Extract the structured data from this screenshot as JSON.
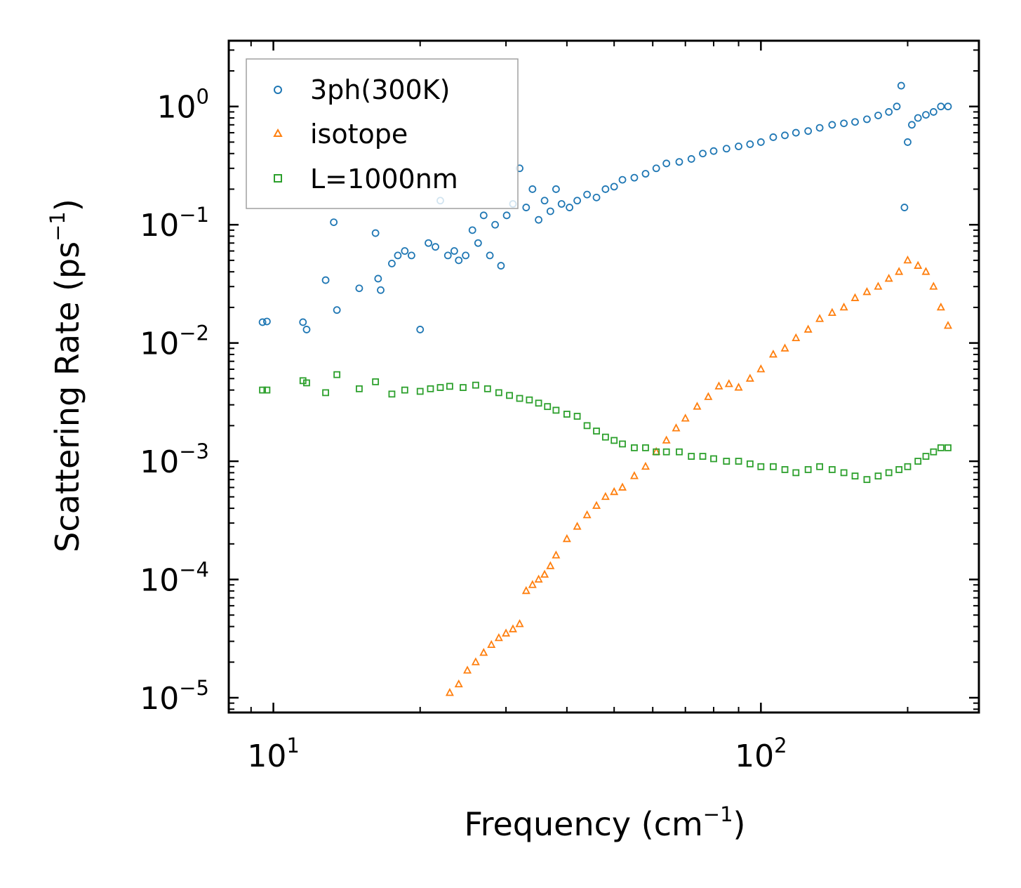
{
  "chart_data": {
    "type": "scatter",
    "title": "",
    "xlabel": "Frequency (cm",
    "xlabel_sup": "−1",
    "xlabel_end": ")",
    "ylabel": "Scattering Rate (ps",
    "ylabel_sup": "−1",
    "ylabel_end": ")",
    "xscale": "log",
    "yscale": "log",
    "xlim": [
      8.1,
      280
    ],
    "ylim": [
      7.5e-06,
      3.6
    ],
    "x_ticks": [
      {
        "value": 10,
        "base": "10",
        "exp": "1"
      },
      {
        "value": 100,
        "base": "10",
        "exp": "2"
      }
    ],
    "y_ticks": [
      {
        "value": 1,
        "base": "10",
        "exp": "0"
      },
      {
        "value": 0.1,
        "base": "10",
        "exp": "−1"
      },
      {
        "value": 0.01,
        "base": "10",
        "exp": "−2"
      },
      {
        "value": 0.001,
        "base": "10",
        "exp": "−3"
      },
      {
        "value": 0.0001,
        "base": "10",
        "exp": "−4"
      },
      {
        "value": 1e-05,
        "base": "10",
        "exp": "−5"
      }
    ],
    "legend_position": "top-left",
    "series": [
      {
        "name": "3ph(300K)",
        "marker": "circle",
        "color": "#1f77b4",
        "x": [
          9.5,
          9.7,
          11.5,
          11.7,
          12.8,
          13.3,
          13.5,
          15.0,
          16.2,
          16.4,
          16.6,
          17.5,
          18.0,
          18.6,
          19.2,
          20.0,
          20.8,
          21.5,
          22.0,
          22.8,
          23.5,
          24.0,
          24.8,
          25.6,
          26.3,
          27.0,
          27.8,
          28.5,
          29.3,
          30.1,
          31.0,
          32.0,
          33.0,
          34.0,
          35.0,
          36.0,
          37.0,
          38.0,
          39.0,
          40.5,
          42.0,
          44.0,
          46.0,
          48.0,
          50.0,
          52.0,
          55.0,
          58.0,
          61.0,
          64.0,
          68.0,
          72.0,
          76.0,
          80.0,
          85.0,
          90.0,
          95.0,
          100.0,
          106.0,
          112.0,
          118.0,
          125.0,
          132.0,
          140.0,
          148.0,
          156.0,
          165.0,
          174.0,
          183.0,
          190.0,
          194.0,
          197.0,
          200.0,
          204.0,
          210.0,
          218.0,
          226.0,
          234.0,
          242.0
        ],
        "y": [
          0.015,
          0.0152,
          0.015,
          0.013,
          0.034,
          0.105,
          0.019,
          0.029,
          0.085,
          0.035,
          0.028,
          0.047,
          0.055,
          0.06,
          0.055,
          0.013,
          0.07,
          0.065,
          0.16,
          0.055,
          0.06,
          0.05,
          0.055,
          0.09,
          0.07,
          0.12,
          0.055,
          0.1,
          0.045,
          0.12,
          0.15,
          0.3,
          0.14,
          0.2,
          0.11,
          0.16,
          0.13,
          0.2,
          0.15,
          0.14,
          0.16,
          0.18,
          0.17,
          0.2,
          0.21,
          0.24,
          0.25,
          0.27,
          0.3,
          0.33,
          0.34,
          0.36,
          0.4,
          0.42,
          0.44,
          0.46,
          0.48,
          0.5,
          0.55,
          0.57,
          0.6,
          0.62,
          0.66,
          0.7,
          0.72,
          0.74,
          0.78,
          0.84,
          0.9,
          1.0,
          1.5,
          0.14,
          0.5,
          0.7,
          0.8,
          0.85,
          0.9,
          1.0,
          1.0
        ]
      },
      {
        "name": "isotope",
        "marker": "triangle",
        "color": "#ff7f0e",
        "x": [
          23.0,
          24.0,
          25.0,
          26.0,
          27.0,
          28.0,
          29.0,
          30.0,
          31.0,
          32.0,
          33.0,
          34.0,
          35.0,
          36.0,
          37.0,
          38.0,
          40.0,
          42.0,
          44.0,
          46.0,
          48.0,
          50.0,
          52.0,
          55.0,
          58.0,
          61.0,
          64.0,
          67.0,
          70.0,
          74.0,
          78.0,
          82.0,
          86.0,
          90.0,
          95.0,
          100.0,
          106.0,
          112.0,
          118.0,
          125.0,
          132.0,
          140.0,
          148.0,
          156.0,
          165.0,
          174.0,
          183.0,
          192.0,
          200.0,
          210.0,
          218.0,
          226.0,
          234.0,
          242.0
        ],
        "y": [
          1.1e-05,
          1.3e-05,
          1.7e-05,
          2e-05,
          2.4e-05,
          2.8e-05,
          3.2e-05,
          3.5e-05,
          3.8e-05,
          4.2e-05,
          8e-05,
          9e-05,
          0.0001,
          0.00011,
          0.00013,
          0.00016,
          0.00022,
          0.00028,
          0.00035,
          0.00042,
          0.0005,
          0.00055,
          0.0006,
          0.00075,
          0.0009,
          0.0012,
          0.0015,
          0.0019,
          0.0023,
          0.0029,
          0.0035,
          0.0043,
          0.0045,
          0.0042,
          0.005,
          0.006,
          0.008,
          0.009,
          0.011,
          0.013,
          0.016,
          0.018,
          0.02,
          0.024,
          0.027,
          0.03,
          0.035,
          0.04,
          0.05,
          0.045,
          0.04,
          0.03,
          0.02,
          0.014
        ]
      },
      {
        "name": "L=1000nm",
        "marker": "square",
        "color": "#2ca02c",
        "x": [
          9.5,
          9.7,
          11.5,
          11.7,
          12.8,
          13.5,
          15.0,
          16.2,
          17.5,
          18.6,
          20.0,
          21.0,
          22.0,
          23.0,
          24.5,
          26.0,
          27.5,
          29.0,
          30.5,
          32.0,
          33.5,
          35.0,
          36.5,
          38.0,
          40.0,
          42.0,
          44.0,
          46.0,
          48.0,
          50.0,
          52.0,
          55.0,
          58.0,
          61.0,
          64.0,
          68.0,
          72.0,
          76.0,
          80.0,
          85.0,
          90.0,
          95.0,
          100.0,
          106.0,
          112.0,
          118.0,
          125.0,
          132.0,
          140.0,
          148.0,
          156.0,
          165.0,
          174.0,
          183.0,
          192.0,
          200.0,
          210.0,
          218.0,
          226.0,
          234.0,
          242.0
        ],
        "y": [
          0.004,
          0.004,
          0.0048,
          0.0046,
          0.0038,
          0.0054,
          0.0041,
          0.0047,
          0.0037,
          0.004,
          0.0039,
          0.0041,
          0.0042,
          0.0043,
          0.0042,
          0.0044,
          0.0041,
          0.0038,
          0.0036,
          0.0034,
          0.0033,
          0.0031,
          0.0029,
          0.0027,
          0.0025,
          0.0024,
          0.002,
          0.0018,
          0.0016,
          0.0015,
          0.0014,
          0.0013,
          0.0013,
          0.0012,
          0.0012,
          0.0012,
          0.0011,
          0.0011,
          0.00105,
          0.001,
          0.001,
          0.00095,
          0.0009,
          0.0009,
          0.00085,
          0.0008,
          0.00085,
          0.0009,
          0.00085,
          0.0008,
          0.00075,
          0.0007,
          0.00075,
          0.0008,
          0.00085,
          0.0009,
          0.001,
          0.0011,
          0.0012,
          0.0013,
          0.0013
        ]
      }
    ]
  }
}
